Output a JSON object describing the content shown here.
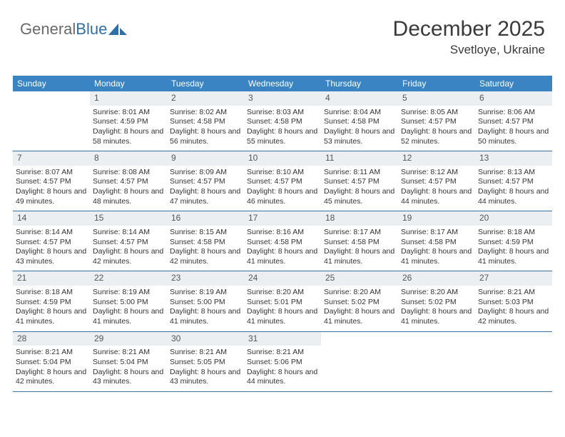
{
  "logo": {
    "text1": "General",
    "text2": "Blue"
  },
  "header": {
    "month_title": "December 2025",
    "location": "Svetloye, Ukraine"
  },
  "colors": {
    "header_bg": "#3b84c4",
    "daynum_bg": "#eceff1",
    "rule": "#3b6fa0",
    "text": "#333333",
    "logo_gray": "#6a6a6a",
    "logo_blue": "#2f6fa8"
  },
  "day_names": [
    "Sunday",
    "Monday",
    "Tuesday",
    "Wednesday",
    "Thursday",
    "Friday",
    "Saturday"
  ],
  "weeks": [
    [
      {
        "n": "",
        "empty": true
      },
      {
        "n": "1",
        "sunrise": "Sunrise: 8:01 AM",
        "sunset": "Sunset: 4:59 PM",
        "daylight": "Daylight: 8 hours and 58 minutes."
      },
      {
        "n": "2",
        "sunrise": "Sunrise: 8:02 AM",
        "sunset": "Sunset: 4:58 PM",
        "daylight": "Daylight: 8 hours and 56 minutes."
      },
      {
        "n": "3",
        "sunrise": "Sunrise: 8:03 AM",
        "sunset": "Sunset: 4:58 PM",
        "daylight": "Daylight: 8 hours and 55 minutes."
      },
      {
        "n": "4",
        "sunrise": "Sunrise: 8:04 AM",
        "sunset": "Sunset: 4:58 PM",
        "daylight": "Daylight: 8 hours and 53 minutes."
      },
      {
        "n": "5",
        "sunrise": "Sunrise: 8:05 AM",
        "sunset": "Sunset: 4:57 PM",
        "daylight": "Daylight: 8 hours and 52 minutes."
      },
      {
        "n": "6",
        "sunrise": "Sunrise: 8:06 AM",
        "sunset": "Sunset: 4:57 PM",
        "daylight": "Daylight: 8 hours and 50 minutes."
      }
    ],
    [
      {
        "n": "7",
        "sunrise": "Sunrise: 8:07 AM",
        "sunset": "Sunset: 4:57 PM",
        "daylight": "Daylight: 8 hours and 49 minutes."
      },
      {
        "n": "8",
        "sunrise": "Sunrise: 8:08 AM",
        "sunset": "Sunset: 4:57 PM",
        "daylight": "Daylight: 8 hours and 48 minutes."
      },
      {
        "n": "9",
        "sunrise": "Sunrise: 8:09 AM",
        "sunset": "Sunset: 4:57 PM",
        "daylight": "Daylight: 8 hours and 47 minutes."
      },
      {
        "n": "10",
        "sunrise": "Sunrise: 8:10 AM",
        "sunset": "Sunset: 4:57 PM",
        "daylight": "Daylight: 8 hours and 46 minutes."
      },
      {
        "n": "11",
        "sunrise": "Sunrise: 8:11 AM",
        "sunset": "Sunset: 4:57 PM",
        "daylight": "Daylight: 8 hours and 45 minutes."
      },
      {
        "n": "12",
        "sunrise": "Sunrise: 8:12 AM",
        "sunset": "Sunset: 4:57 PM",
        "daylight": "Daylight: 8 hours and 44 minutes."
      },
      {
        "n": "13",
        "sunrise": "Sunrise: 8:13 AM",
        "sunset": "Sunset: 4:57 PM",
        "daylight": "Daylight: 8 hours and 44 minutes."
      }
    ],
    [
      {
        "n": "14",
        "sunrise": "Sunrise: 8:14 AM",
        "sunset": "Sunset: 4:57 PM",
        "daylight": "Daylight: 8 hours and 43 minutes."
      },
      {
        "n": "15",
        "sunrise": "Sunrise: 8:14 AM",
        "sunset": "Sunset: 4:57 PM",
        "daylight": "Daylight: 8 hours and 42 minutes."
      },
      {
        "n": "16",
        "sunrise": "Sunrise: 8:15 AM",
        "sunset": "Sunset: 4:58 PM",
        "daylight": "Daylight: 8 hours and 42 minutes."
      },
      {
        "n": "17",
        "sunrise": "Sunrise: 8:16 AM",
        "sunset": "Sunset: 4:58 PM",
        "daylight": "Daylight: 8 hours and 41 minutes."
      },
      {
        "n": "18",
        "sunrise": "Sunrise: 8:17 AM",
        "sunset": "Sunset: 4:58 PM",
        "daylight": "Daylight: 8 hours and 41 minutes."
      },
      {
        "n": "19",
        "sunrise": "Sunrise: 8:17 AM",
        "sunset": "Sunset: 4:58 PM",
        "daylight": "Daylight: 8 hours and 41 minutes."
      },
      {
        "n": "20",
        "sunrise": "Sunrise: 8:18 AM",
        "sunset": "Sunset: 4:59 PM",
        "daylight": "Daylight: 8 hours and 41 minutes."
      }
    ],
    [
      {
        "n": "21",
        "sunrise": "Sunrise: 8:18 AM",
        "sunset": "Sunset: 4:59 PM",
        "daylight": "Daylight: 8 hours and 41 minutes."
      },
      {
        "n": "22",
        "sunrise": "Sunrise: 8:19 AM",
        "sunset": "Sunset: 5:00 PM",
        "daylight": "Daylight: 8 hours and 41 minutes."
      },
      {
        "n": "23",
        "sunrise": "Sunrise: 8:19 AM",
        "sunset": "Sunset: 5:00 PM",
        "daylight": "Daylight: 8 hours and 41 minutes."
      },
      {
        "n": "24",
        "sunrise": "Sunrise: 8:20 AM",
        "sunset": "Sunset: 5:01 PM",
        "daylight": "Daylight: 8 hours and 41 minutes."
      },
      {
        "n": "25",
        "sunrise": "Sunrise: 8:20 AM",
        "sunset": "Sunset: 5:02 PM",
        "daylight": "Daylight: 8 hours and 41 minutes."
      },
      {
        "n": "26",
        "sunrise": "Sunrise: 8:20 AM",
        "sunset": "Sunset: 5:02 PM",
        "daylight": "Daylight: 8 hours and 41 minutes."
      },
      {
        "n": "27",
        "sunrise": "Sunrise: 8:21 AM",
        "sunset": "Sunset: 5:03 PM",
        "daylight": "Daylight: 8 hours and 42 minutes."
      }
    ],
    [
      {
        "n": "28",
        "sunrise": "Sunrise: 8:21 AM",
        "sunset": "Sunset: 5:04 PM",
        "daylight": "Daylight: 8 hours and 42 minutes."
      },
      {
        "n": "29",
        "sunrise": "Sunrise: 8:21 AM",
        "sunset": "Sunset: 5:04 PM",
        "daylight": "Daylight: 8 hours and 43 minutes."
      },
      {
        "n": "30",
        "sunrise": "Sunrise: 8:21 AM",
        "sunset": "Sunset: 5:05 PM",
        "daylight": "Daylight: 8 hours and 43 minutes."
      },
      {
        "n": "31",
        "sunrise": "Sunrise: 8:21 AM",
        "sunset": "Sunset: 5:06 PM",
        "daylight": "Daylight: 8 hours and 44 minutes."
      },
      {
        "n": "",
        "empty": true
      },
      {
        "n": "",
        "empty": true
      },
      {
        "n": "",
        "empty": true
      }
    ]
  ]
}
